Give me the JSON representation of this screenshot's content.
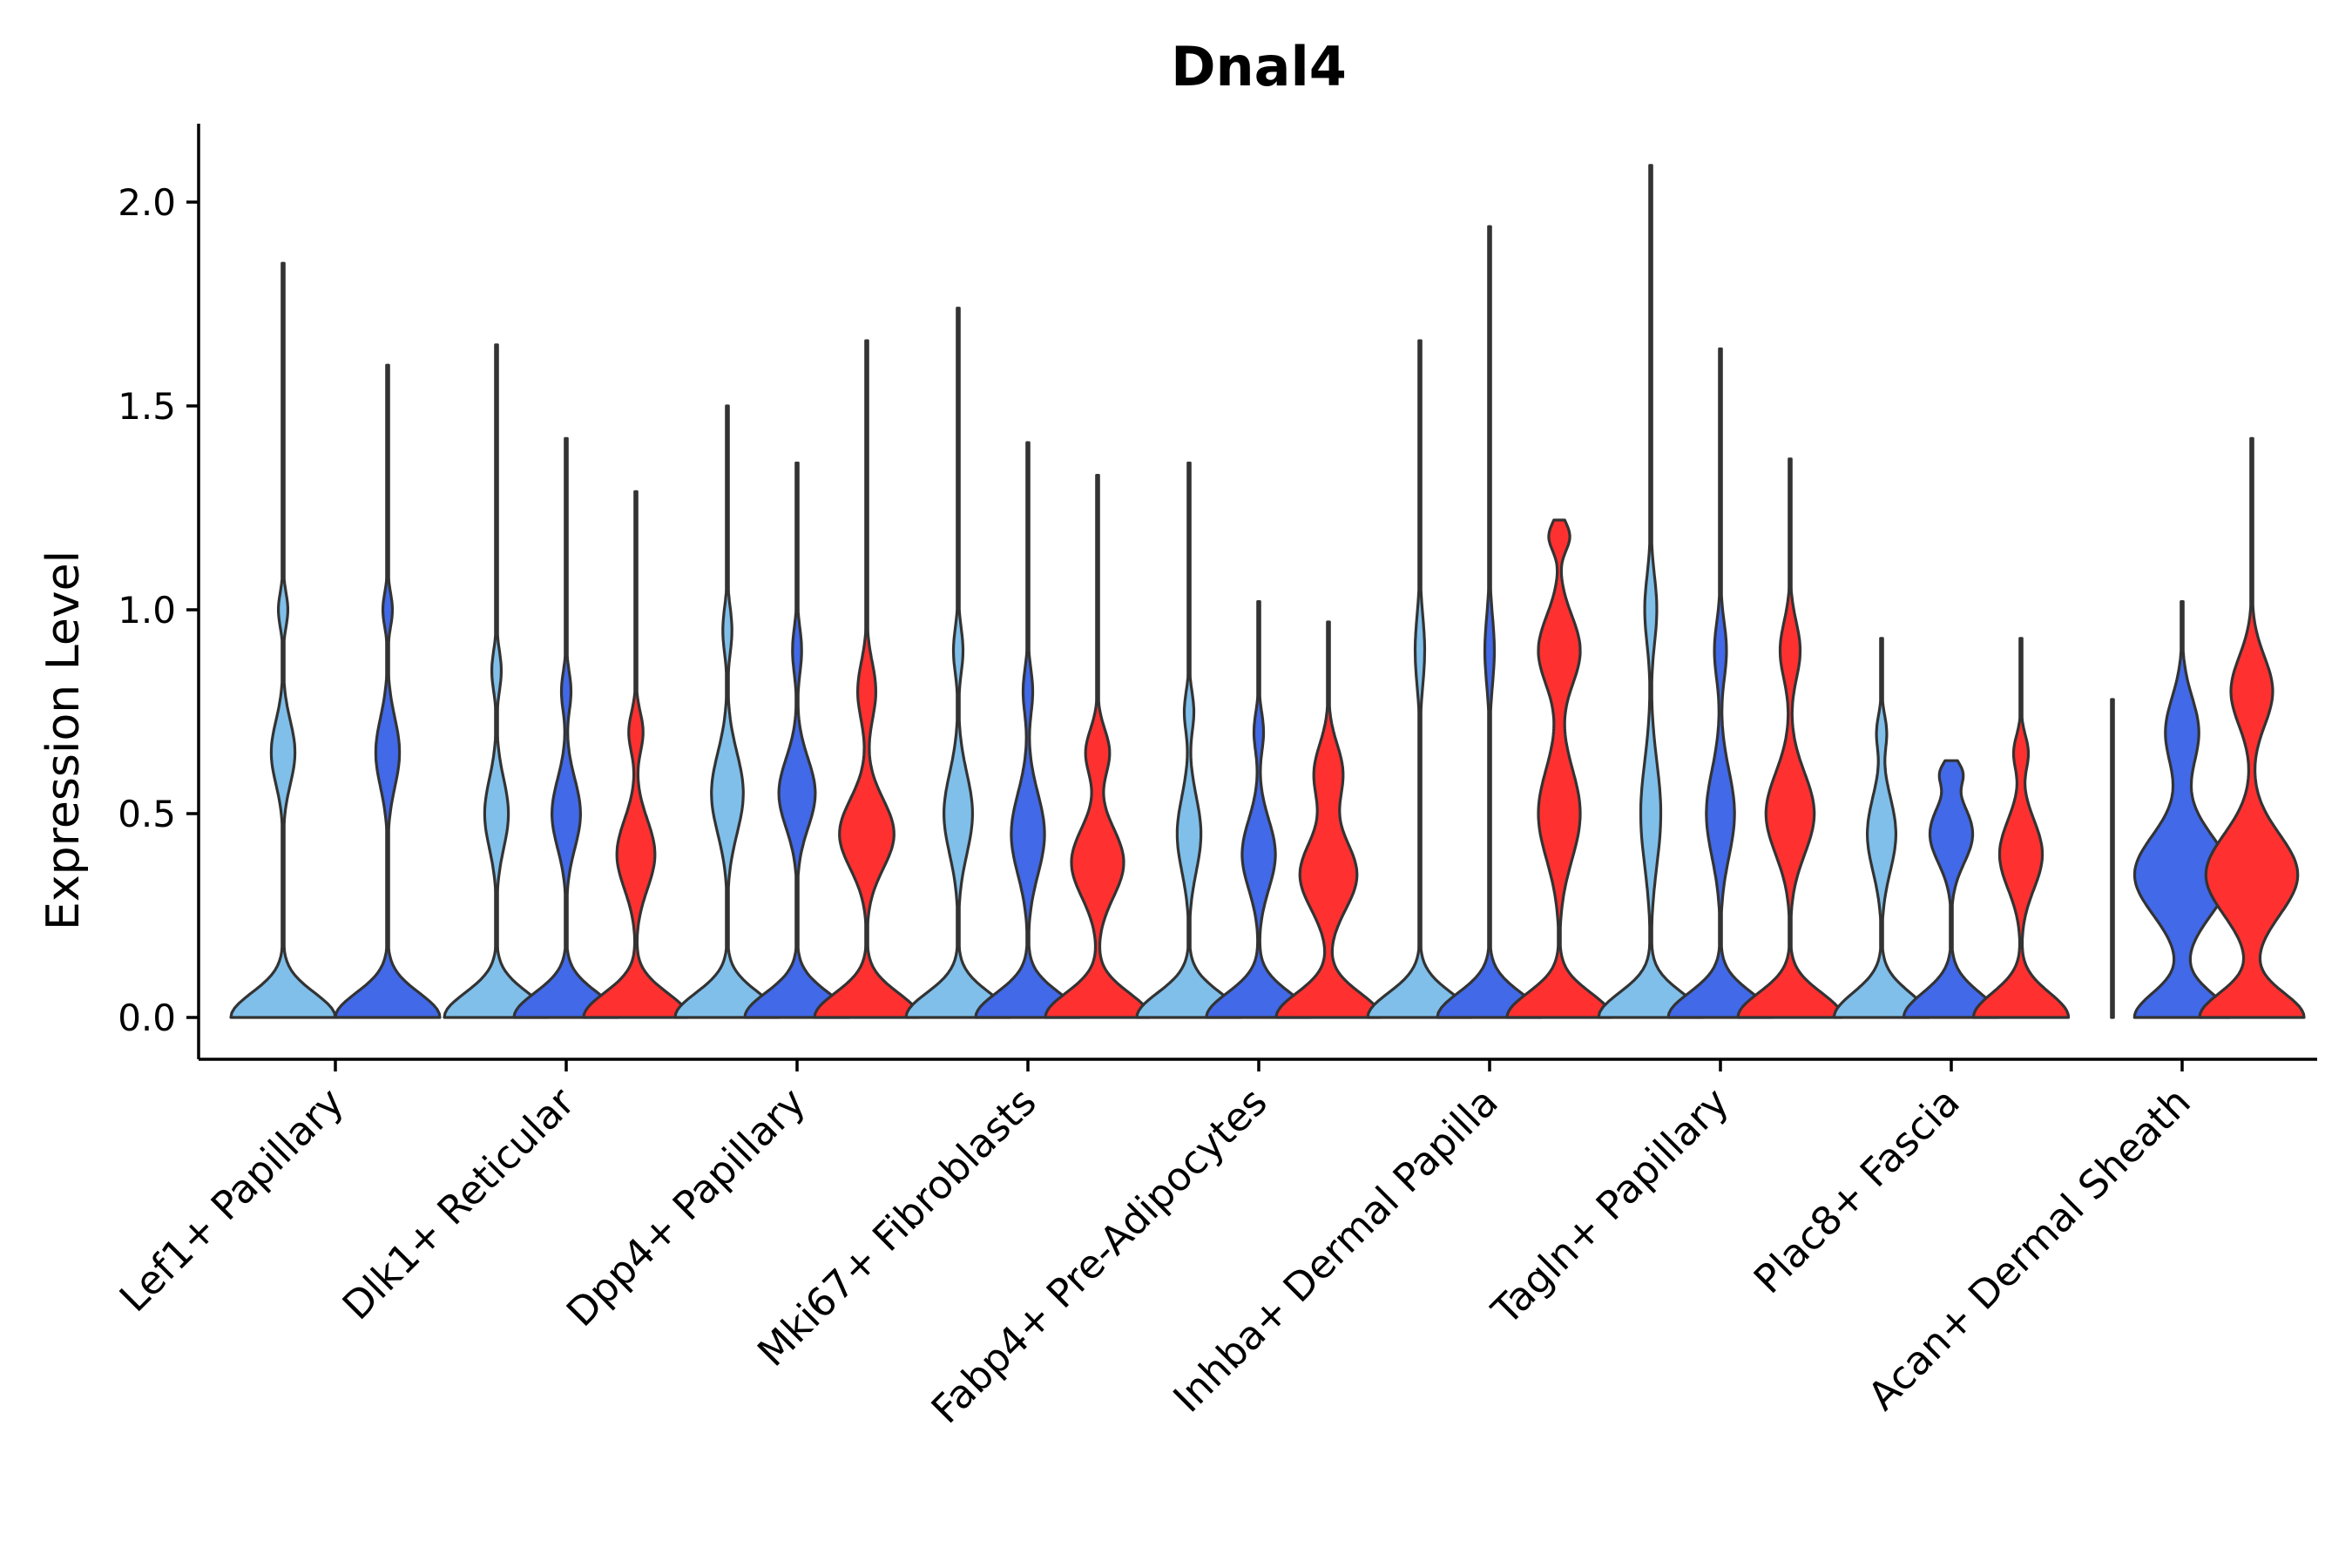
{
  "chart_data": {
    "type": "violin",
    "title": "Dnal4",
    "xlabel": "",
    "ylabel": "Expression Level",
    "ylim": [
      -0.1,
      2.2
    ],
    "yticks": [
      "0.0",
      "0.5",
      "1.0",
      "1.5",
      "2.0"
    ],
    "grid": false,
    "legend": "none",
    "colors": [
      "#7fbfea",
      "#4169e8",
      "#ff3030"
    ],
    "categories": [
      {
        "name": "Lef1+ Papillary",
        "violins": [
          {
            "color_index": 0,
            "max": 1.85,
            "peak": 0.22,
            "bumps": [
              [
                0.65,
                0.11,
                0.05
              ],
              [
                1.0,
                0.06,
                0.02
              ]
            ]
          },
          {
            "color_index": 1,
            "max": 1.6,
            "peak": 0.22,
            "bumps": [
              [
                0.65,
                0.12,
                0.05
              ],
              [
                1.0,
                0.06,
                0.02
              ]
            ]
          }
        ]
      },
      {
        "name": "Dlk1+ Reticular",
        "violins": [
          {
            "color_index": 0,
            "max": 1.65,
            "peak": 0.22,
            "bumps": [
              [
                0.5,
                0.12,
                0.05
              ],
              [
                0.85,
                0.07,
                0.02
              ]
            ]
          },
          {
            "color_index": 1,
            "max": 1.42,
            "peak": 0.22,
            "bumps": [
              [
                0.5,
                0.12,
                0.06
              ],
              [
                0.8,
                0.07,
                0.02
              ]
            ]
          },
          {
            "color_index": 2,
            "max": 1.29,
            "peak": 0.22,
            "bumps": [
              [
                0.4,
                0.12,
                0.08
              ],
              [
                0.7,
                0.07,
                0.03
              ]
            ]
          }
        ]
      },
      {
        "name": "Dpp4+ Papillary",
        "violins": [
          {
            "color_index": 0,
            "max": 1.5,
            "peak": 0.23,
            "bumps": [
              [
                0.55,
                0.14,
                0.07
              ],
              [
                0.95,
                0.08,
                0.02
              ]
            ]
          },
          {
            "color_index": 1,
            "max": 1.36,
            "peak": 0.23,
            "bumps": [
              [
                0.55,
                0.12,
                0.08
              ],
              [
                0.9,
                0.08,
                0.02
              ]
            ]
          },
          {
            "color_index": 2,
            "max": 1.66,
            "peak": 0.23,
            "bumps": [
              [
                0.45,
                0.12,
                0.12
              ],
              [
                0.8,
                0.1,
                0.04
              ]
            ]
          }
        ]
      },
      {
        "name": "Mki67+ Fibroblasts",
        "violins": [
          {
            "color_index": 0,
            "max": 1.74,
            "peak": 0.22,
            "bumps": [
              [
                0.5,
                0.14,
                0.06
              ],
              [
                0.9,
                0.08,
                0.02
              ]
            ]
          },
          {
            "color_index": 1,
            "max": 1.41,
            "peak": 0.22,
            "bumps": [
              [
                0.45,
                0.14,
                0.07
              ],
              [
                0.8,
                0.08,
                0.02
              ]
            ]
          },
          {
            "color_index": 2,
            "max": 1.33,
            "peak": 0.22,
            "bumps": [
              [
                0.38,
                0.12,
                0.11
              ],
              [
                0.65,
                0.08,
                0.05
              ]
            ]
          }
        ]
      },
      {
        "name": "Fabp4+ Pre-Adipocytes",
        "violins": [
          {
            "color_index": 0,
            "max": 1.36,
            "peak": 0.22,
            "bumps": [
              [
                0.45,
                0.13,
                0.05
              ],
              [
                0.75,
                0.07,
                0.02
              ]
            ]
          },
          {
            "color_index": 1,
            "max": 1.02,
            "peak": 0.22,
            "bumps": [
              [
                0.4,
                0.12,
                0.07
              ],
              [
                0.7,
                0.07,
                0.02
              ]
            ]
          },
          {
            "color_index": 2,
            "max": 0.97,
            "peak": 0.22,
            "bumps": [
              [
                0.35,
                0.12,
                0.12
              ],
              [
                0.6,
                0.1,
                0.06
              ]
            ]
          }
        ]
      },
      {
        "name": "Inhba+ Dermal Papilla",
        "violins": [
          {
            "color_index": 0,
            "max": 1.66,
            "peak": 0.22,
            "bumps": [
              [
                0.9,
                0.12,
                0.02
              ]
            ]
          },
          {
            "color_index": 1,
            "max": 1.94,
            "peak": 0.22,
            "bumps": [
              [
                0.9,
                0.12,
                0.02
              ]
            ]
          },
          {
            "color_index": 2,
            "max": 1.22,
            "peak": 0.25,
            "bumps": [
              [
                0.5,
                0.16,
                0.1
              ],
              [
                0.9,
                0.12,
                0.1
              ],
              [
                1.18,
                0.05,
                0.05
              ]
            ]
          }
        ]
      },
      {
        "name": "Tagln+ Papillary",
        "violins": [
          {
            "color_index": 0,
            "max": 2.09,
            "peak": 0.26,
            "bumps": [
              [
                0.5,
                0.18,
                0.05
              ],
              [
                1.0,
                0.12,
                0.03
              ]
            ]
          },
          {
            "color_index": 1,
            "max": 1.64,
            "peak": 0.26,
            "bumps": [
              [
                0.5,
                0.15,
                0.07
              ],
              [
                0.9,
                0.1,
                0.03
              ]
            ]
          },
          {
            "color_index": 2,
            "max": 1.37,
            "peak": 0.26,
            "bumps": [
              [
                0.5,
                0.14,
                0.12
              ],
              [
                0.9,
                0.1,
                0.05
              ]
            ]
          }
        ]
      },
      {
        "name": "Plac8+ Fascia",
        "violins": [
          {
            "color_index": 0,
            "max": 0.93,
            "peak": 0.2,
            "bumps": [
              [
                0.45,
                0.13,
                0.06
              ],
              [
                0.7,
                0.06,
                0.02
              ]
            ]
          },
          {
            "color_index": 1,
            "max": 0.63,
            "peak": 0.2,
            "bumps": [
              [
                0.45,
                0.1,
                0.09
              ],
              [
                0.6,
                0.04,
                0.04
              ]
            ]
          },
          {
            "color_index": 2,
            "max": 0.93,
            "peak": 0.2,
            "bumps": [
              [
                0.4,
                0.12,
                0.09
              ],
              [
                0.65,
                0.06,
                0.03
              ]
            ]
          }
        ]
      },
      {
        "name": "Acan+ Dermal Sheath",
        "violins": [
          {
            "color_index": 0,
            "max": 0.78,
            "peak": 0.004,
            "bumps": [
              [
                0.5,
                0.2,
                0.004
              ]
            ]
          },
          {
            "color_index": 1,
            "max": 1.02,
            "peak": 0.2,
            "bumps": [
              [
                0.35,
                0.14,
                0.2
              ],
              [
                0.7,
                0.12,
                0.07
              ]
            ]
          },
          {
            "color_index": 2,
            "max": 1.42,
            "peak": 0.25,
            "bumps": [
              [
                0.35,
                0.14,
                0.22
              ],
              [
                0.8,
                0.12,
                0.1
              ]
            ]
          }
        ]
      }
    ]
  }
}
